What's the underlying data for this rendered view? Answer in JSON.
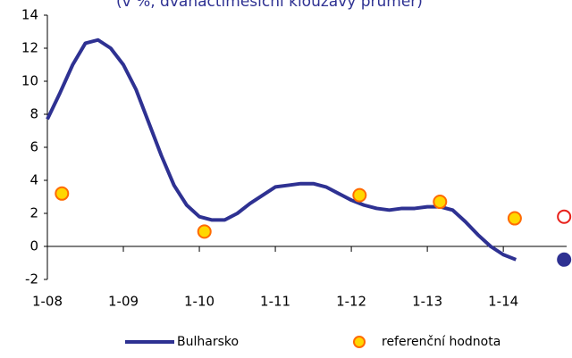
{
  "chart_data": {
    "type": "line",
    "title": "(v %, dvanáctiměsíční klouzavý průměr)",
    "xlim": [
      0,
      82
    ],
    "xticks": [
      {
        "value": 0,
        "label": "1-08"
      },
      {
        "value": 12,
        "label": "1-09"
      },
      {
        "value": 24,
        "label": "1-10"
      },
      {
        "value": 36,
        "label": "1-11"
      },
      {
        "value": 48,
        "label": "1-12"
      },
      {
        "value": 60,
        "label": "1-13"
      },
      {
        "value": 72,
        "label": "1-14"
      }
    ],
    "ylim": [
      -2,
      14
    ],
    "yticks": [
      -2,
      0,
      2,
      4,
      6,
      8,
      10,
      12,
      14
    ],
    "series": [
      {
        "name": "Bulharsko",
        "color": "#2e3192",
        "style": "line",
        "x": [
          0,
          2,
          4,
          6,
          8,
          10,
          12,
          14,
          16,
          18,
          20,
          22,
          24,
          26,
          28,
          30,
          32,
          34,
          36,
          38,
          40,
          42,
          44,
          46,
          48,
          50,
          52,
          54,
          56,
          58,
          60,
          62,
          64,
          66,
          68,
          70,
          72,
          74
        ],
        "values": [
          7.7,
          9.3,
          11.0,
          12.3,
          12.5,
          12.0,
          11.0,
          9.5,
          7.5,
          5.5,
          3.7,
          2.5,
          1.8,
          1.6,
          1.6,
          2.0,
          2.6,
          3.1,
          3.6,
          3.7,
          3.8,
          3.8,
          3.6,
          3.2,
          2.8,
          2.5,
          2.3,
          2.2,
          2.3,
          2.3,
          2.4,
          2.4,
          2.2,
          1.5,
          0.7,
          0.0,
          -0.5,
          -0.8
        ]
      },
      {
        "name": "referenční hodnota",
        "color": "#ffd700",
        "edge": "#ff6a00",
        "style": "marker",
        "x": [
          2.3,
          24.8,
          49.3,
          62,
          73.8
        ],
        "values": [
          3.2,
          0.9,
          3.1,
          2.7,
          1.7
        ]
      },
      {
        "color": "#ffffff",
        "edge": "#e8201a",
        "style": "marker",
        "x": [
          81.6
        ],
        "values": [
          1.8
        ]
      },
      {
        "color": "#2e3192",
        "edge": "#2e3192",
        "style": "marker",
        "x": [
          81.6
        ],
        "values": [
          -0.8
        ]
      }
    ]
  }
}
